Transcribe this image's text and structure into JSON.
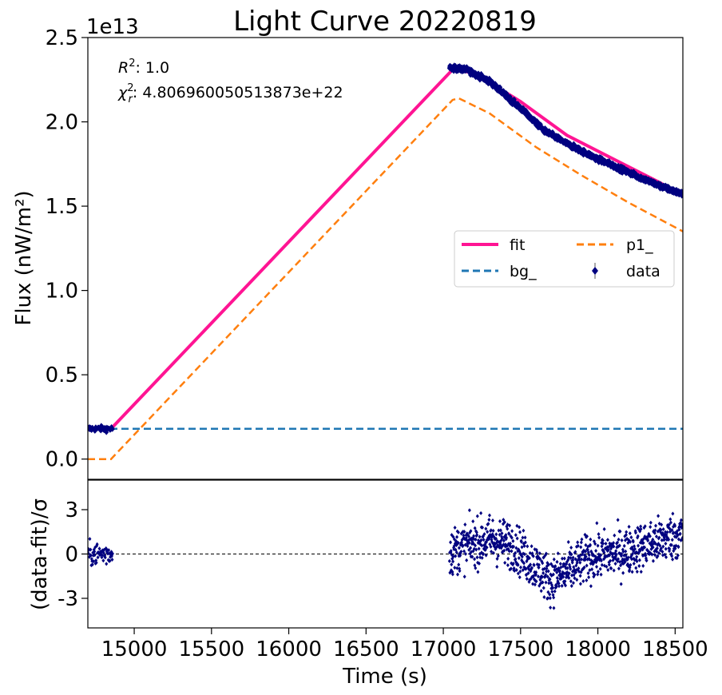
{
  "chart_data": [
    {
      "type": "line",
      "panel": "top",
      "title": "Light Curve 20220819",
      "ylabel": "Flux (nW/m²)",
      "offset_label": "1e13",
      "xlim": [
        14700,
        18550
      ],
      "ylim": [
        -0.12,
        2.5
      ],
      "yticks": [
        0.0,
        0.5,
        1.0,
        1.5,
        2.0,
        2.5
      ],
      "ytick_labels": [
        "0.0",
        "0.5",
        "1.0",
        "1.5",
        "2.0",
        "2.5"
      ],
      "xticks": [
        15000,
        15500,
        16000,
        16500,
        17000,
        17500,
        18000,
        18500
      ],
      "annotations": [
        {
          "base": "R",
          "sup": "2",
          "sub": "",
          "value": ": 1.0"
        },
        {
          "base": "χ",
          "sup": "2",
          "sub": "r",
          "value": ": 4.806960050513873e+22"
        }
      ],
      "legend": {
        "placement": "center-right",
        "entries": [
          "fit",
          "p1_",
          "bg_",
          "data"
        ]
      },
      "series": [
        {
          "name": "fit",
          "color": "#ff1493",
          "style": "solid",
          "x": [
            14850,
            17060,
            17200,
            17500,
            17800,
            18100,
            18400,
            18550
          ],
          "y": [
            0.18,
            2.31,
            2.29,
            2.12,
            1.92,
            1.78,
            1.64,
            1.56
          ]
        },
        {
          "name": "p1_",
          "color": "#ff7f0e",
          "style": "dashed",
          "x": [
            14700,
            14850,
            17060,
            17100,
            17300,
            17600,
            17900,
            18200,
            18550
          ],
          "y": [
            0.0,
            0.0,
            2.13,
            2.14,
            2.05,
            1.85,
            1.68,
            1.52,
            1.35
          ]
        },
        {
          "name": "bg_",
          "color": "#1f77b4",
          "style": "dashed",
          "x": [
            14700,
            18550
          ],
          "y": [
            0.18,
            0.18
          ]
        },
        {
          "name": "data",
          "color": "#000080",
          "style": "markers",
          "segments": [
            {
              "x_start": 14700,
              "x_end": 14860,
              "y_fixed": 0.18
            },
            {
              "x_start": 17040,
              "x_end": 18550,
              "y_shape": [
                [
                  17040,
                  2.32
                ],
                [
                  17150,
                  2.31
                ],
                [
                  17300,
                  2.24
                ],
                [
                  17500,
                  2.08
                ],
                [
                  17650,
                  1.95
                ],
                [
                  17800,
                  1.87
                ],
                [
                  18000,
                  1.78
                ],
                [
                  18200,
                  1.7
                ],
                [
                  18400,
                  1.62
                ],
                [
                  18550,
                  1.57
                ]
              ]
            }
          ]
        }
      ]
    },
    {
      "type": "scatter",
      "panel": "bottom",
      "xlabel": "Time (s)",
      "ylabel": "(data-fit)/σ",
      "xlim": [
        14700,
        18550
      ],
      "ylim": [
        -5,
        5
      ],
      "yticks": [
        -3,
        0,
        3
      ],
      "ytick_labels": [
        "-3",
        "0",
        "3"
      ],
      "xticks": [
        15000,
        15500,
        16000,
        16500,
        17000,
        17500,
        18000,
        18500
      ],
      "xtick_labels": [
        "15000",
        "15500",
        "16000",
        "16500",
        "17000",
        "17500",
        "18000",
        "18500"
      ],
      "reference_line": {
        "y": 0,
        "color": "#000000",
        "style": "dashed"
      },
      "series": [
        {
          "name": "residuals",
          "color": "#000080",
          "segments": [
            {
              "x_start": 14700,
              "x_end": 14860,
              "spread": 0.4,
              "trend": [
                [
                  14700,
                  0.0
                ],
                [
                  14860,
                  0.0
                ]
              ]
            },
            {
              "x_start": 17040,
              "x_end": 18550,
              "spread": 0.8,
              "trend": [
                [
                  17040,
                  0.1
                ],
                [
                  17150,
                  0.6
                ],
                [
                  17300,
                  1.0
                ],
                [
                  17450,
                  0.6
                ],
                [
                  17550,
                  -0.4
                ],
                [
                  17700,
                  -1.8
                ],
                [
                  17800,
                  -1.2
                ],
                [
                  17950,
                  -0.2
                ],
                [
                  18150,
                  0.1
                ],
                [
                  18350,
                  0.7
                ],
                [
                  18550,
                  1.4
                ]
              ]
            }
          ]
        }
      ]
    }
  ]
}
